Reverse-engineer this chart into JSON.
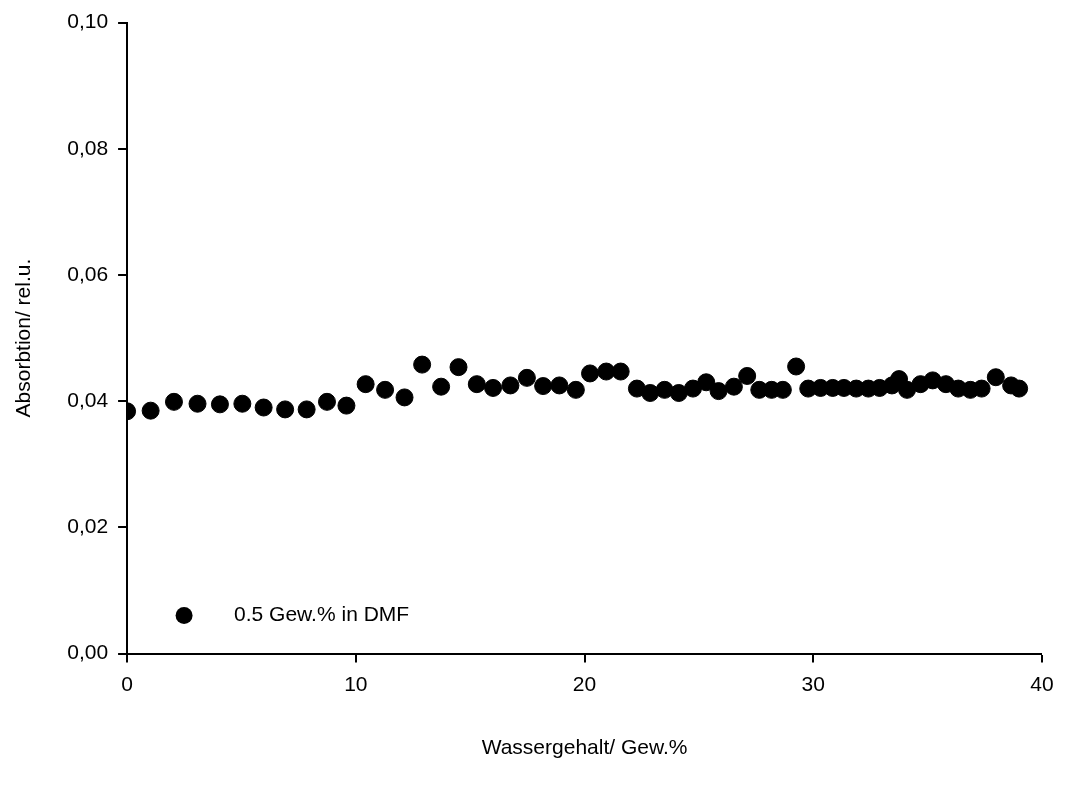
{
  "chart_data": {
    "type": "scatter",
    "xlabel": "Wassergehalt/ Gew.%",
    "ylabel": "Absorbtion/ rel.u.",
    "xlim": [
      0,
      40
    ],
    "xticks": [
      0,
      10,
      20,
      30,
      40
    ],
    "ylim": [
      0,
      0.1
    ],
    "yticks": [
      {
        "value": 0,
        "label": "0,00"
      },
      {
        "value": 0.02,
        "label": "0,02"
      },
      {
        "value": 0.04,
        "label": "0,04"
      },
      {
        "value": 0.06,
        "label": "0,06"
      },
      {
        "value": 0.08,
        "label": "0,08"
      },
      {
        "value": 0.1,
        "label": "0,10"
      }
    ],
    "legend": "bottom left",
    "marker": "circle",
    "series": [
      {
        "name": "0.5 Gew.% in DMF",
        "color": "#000000",
        "x": [
          0,
          1.03,
          2.05,
          3.08,
          4.06,
          5.04,
          5.97,
          6.91,
          7.85,
          8.74,
          9.59,
          10.43,
          11.28,
          12.13,
          12.9,
          13.73,
          14.49,
          15.29,
          16.0,
          16.76,
          17.48,
          18.19,
          18.9,
          19.62,
          20.24,
          20.95,
          21.58,
          22.29,
          22.87,
          23.5,
          24.12,
          24.74,
          25.32,
          25.86,
          26.53,
          27.11,
          27.64,
          28.18,
          28.67,
          29.25,
          29.78,
          30.32,
          30.85,
          31.34,
          31.88,
          32.41,
          32.9,
          33.44,
          33.75,
          34.1,
          34.69,
          35.22,
          35.8,
          36.34,
          36.87,
          37.36,
          37.98,
          38.65,
          39.0
        ],
        "values": [
          0.0384,
          0.0385,
          0.0399,
          0.0396,
          0.0395,
          0.0396,
          0.039,
          0.0387,
          0.0387,
          0.0399,
          0.0393,
          0.0427,
          0.0418,
          0.0406,
          0.0458,
          0.0423,
          0.0454,
          0.0427,
          0.0421,
          0.0425,
          0.0437,
          0.0424,
          0.0425,
          0.0418,
          0.0444,
          0.0447,
          0.0447,
          0.042,
          0.0413,
          0.0418,
          0.0413,
          0.042,
          0.043,
          0.0416,
          0.0423,
          0.044,
          0.0418,
          0.0418,
          0.0418,
          0.0455,
          0.042,
          0.0421,
          0.0421,
          0.0421,
          0.042,
          0.042,
          0.0421,
          0.0425,
          0.0435,
          0.0418,
          0.0427,
          0.0433,
          0.0427,
          0.042,
          0.0418,
          0.042,
          0.0438,
          0.0425,
          0.042
        ]
      }
    ]
  }
}
